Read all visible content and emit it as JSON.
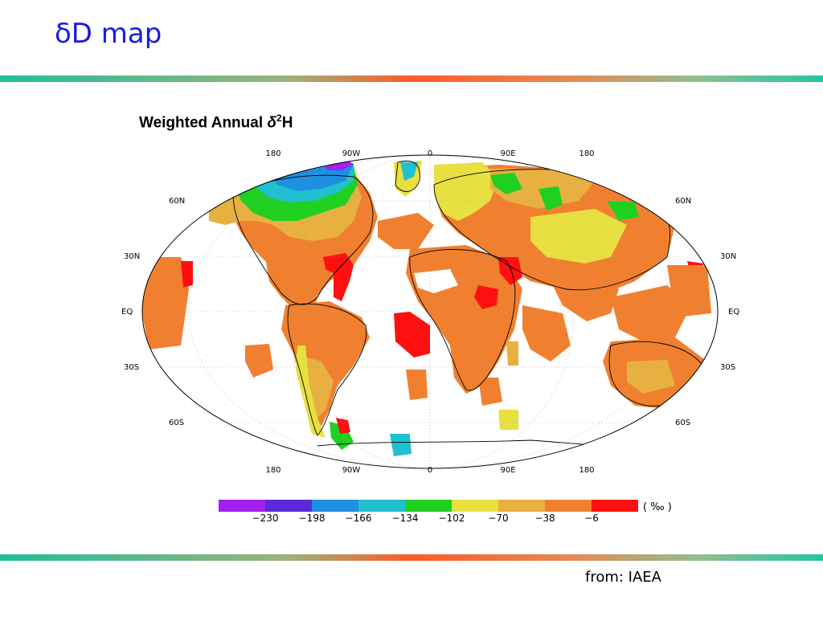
{
  "slide": {
    "title": "δD map",
    "source": "from: IAEA"
  },
  "map": {
    "title_main": "Weighted Annual ",
    "title_delta": "δ",
    "title_sup": "2",
    "title_end": "H",
    "lon_labels": [
      "180",
      "90W",
      "0",
      "90E",
      "180"
    ],
    "lat_labels_left": [
      "60N",
      "30N",
      "EQ",
      "30S",
      "60S"
    ],
    "lat_labels_right": [
      "60N",
      "30N",
      "EQ",
      "30S",
      "60S"
    ]
  },
  "legend": {
    "unit": "( ‰ )",
    "ticks": [
      "−230",
      "−198",
      "−166",
      "−134",
      "−102",
      "−70",
      "−38",
      "−6"
    ],
    "colors": [
      "#a020f0",
      "#5a2ad8",
      "#1e90e0",
      "#20c0d0",
      "#20d020",
      "#e8e040",
      "#e8b040",
      "#f08030",
      "#ff1010"
    ]
  },
  "colors": {
    "orange": "#f08030",
    "light_orange": "#e8b040",
    "yellow": "#e8e040",
    "green": "#20d020",
    "cyan": "#20c0d0",
    "blue": "#1e90e0",
    "red": "#ff1010"
  }
}
